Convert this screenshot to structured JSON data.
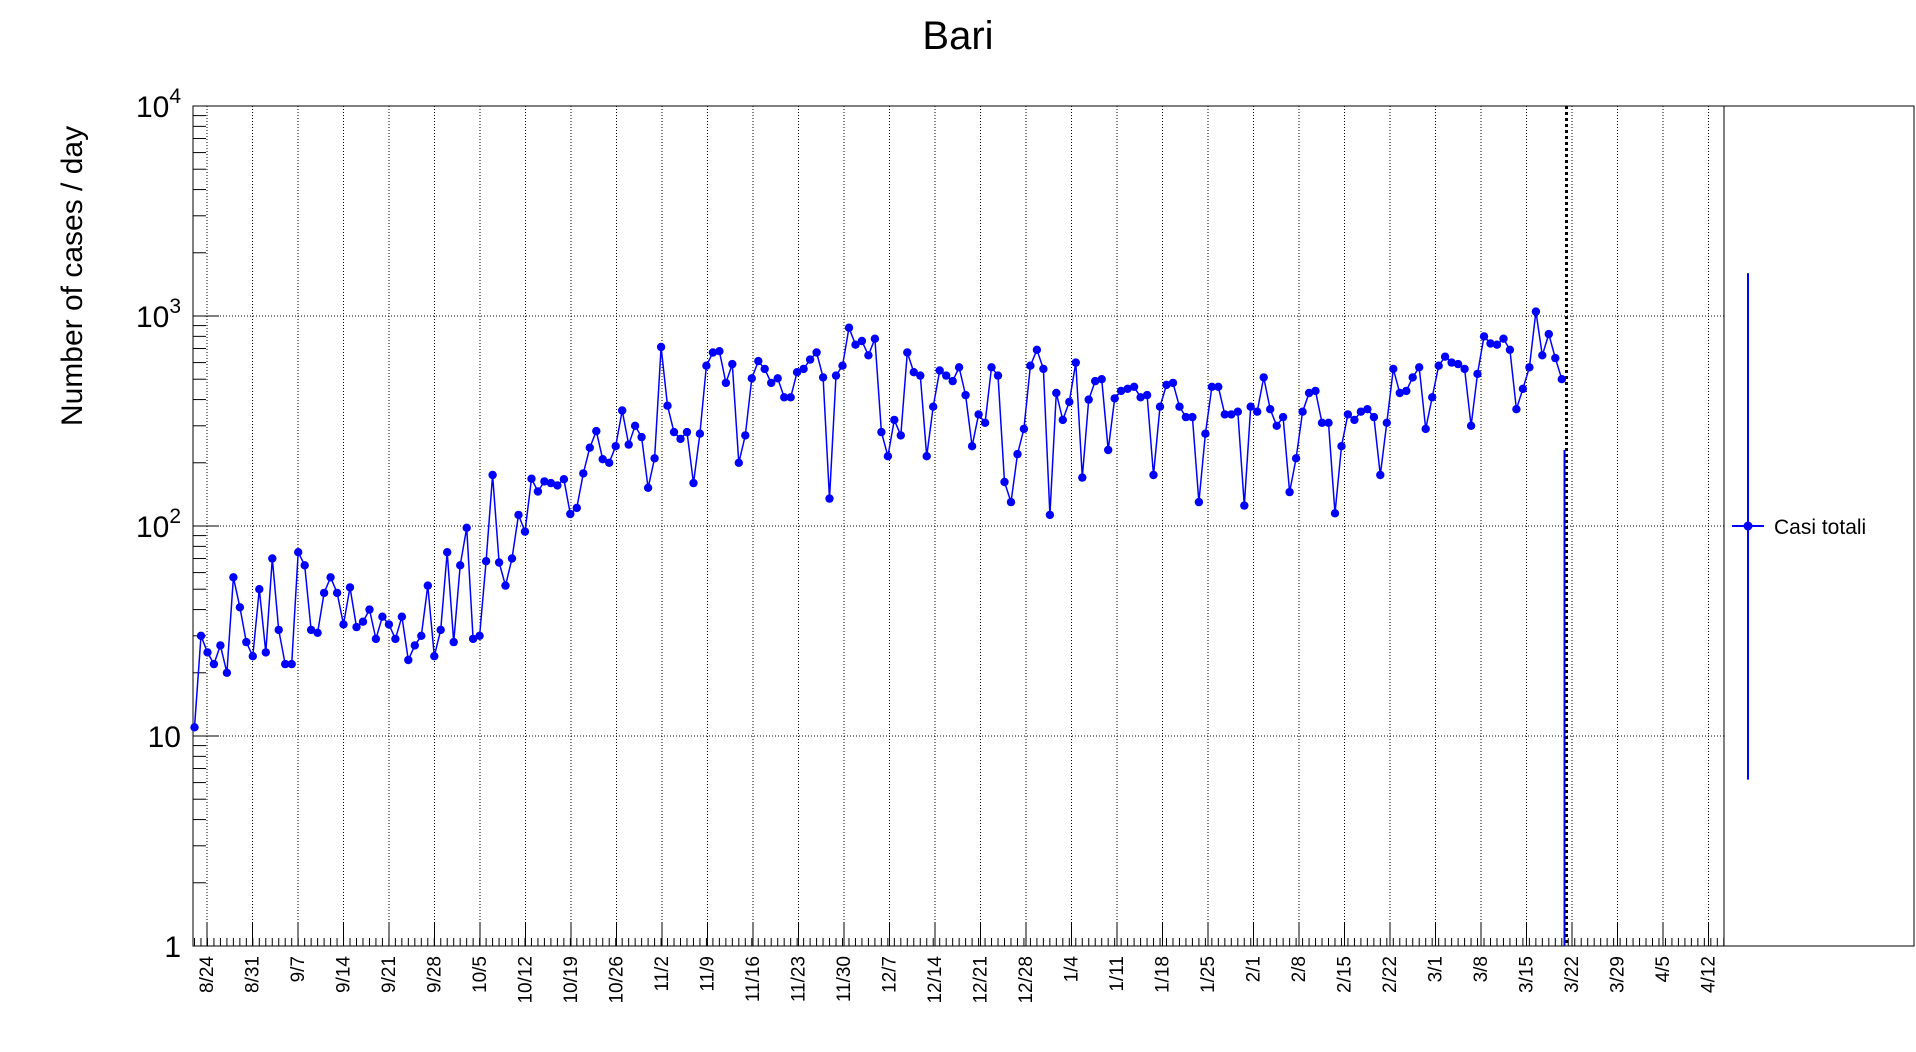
{
  "chart_data": {
    "type": "line",
    "title": "Bari",
    "xlabel": "",
    "ylabel": "Number of cases / day",
    "log_scale_y": true,
    "ylim": [
      1,
      10000
    ],
    "y_ticks": [
      {
        "value": 1,
        "base": "1",
        "exp": ""
      },
      {
        "value": 10,
        "base": "10",
        "exp": ""
      },
      {
        "value": 100,
        "base": "10",
        "exp": "2"
      },
      {
        "value": 1000,
        "base": "10",
        "exp": "3"
      },
      {
        "value": 10000,
        "base": "10",
        "exp": "4"
      }
    ],
    "x_tick_labels": [
      "8/24",
      "8/31",
      "9/7",
      "9/14",
      "9/21",
      "9/28",
      "10/5",
      "10/12",
      "10/19",
      "10/26",
      "11/2",
      "11/9",
      "11/16",
      "11/23",
      "11/30",
      "12/7",
      "12/14",
      "12/21",
      "12/28",
      "1/4",
      "1/11",
      "1/18",
      "1/25",
      "2/1",
      "2/8",
      "2/15",
      "2/22",
      "3/1",
      "3/8",
      "3/15",
      "3/22",
      "3/29",
      "4/5",
      "4/12"
    ],
    "grid": true,
    "legend_position": "right",
    "marker_line_date": "3/22",
    "series": [
      {
        "name": "Casi totali",
        "color": "#0000ff",
        "values": [
          11,
          30,
          25,
          22,
          27,
          20,
          57,
          41,
          28,
          24,
          50,
          25,
          70,
          32,
          22,
          22,
          75,
          65,
          32,
          31,
          48,
          57,
          48,
          34,
          51,
          33,
          35,
          40,
          29,
          37,
          34,
          29,
          37,
          23,
          27,
          30,
          52,
          24,
          32,
          75,
          28,
          65,
          98,
          29,
          30,
          68,
          175,
          67,
          52,
          70,
          113,
          94,
          168,
          146,
          163,
          160,
          156,
          167,
          114,
          122,
          178,
          236,
          283,
          208,
          200,
          240,
          355,
          244,
          300,
          265,
          152,
          210,
          712,
          374,
          280,
          260,
          280,
          160,
          275,
          580,
          670,
          680,
          480,
          590,
          200,
          270,
          505,
          610,
          560,
          480,
          505,
          410,
          410,
          540,
          560,
          620,
          670,
          510,
          135,
          520,
          580,
          880,
          730,
          760,
          650,
          780,
          280,
          215,
          320,
          270,
          670,
          540,
          520,
          215,
          370,
          550,
          520,
          490,
          570,
          420,
          240,
          340,
          310,
          570,
          520,
          162,
          130,
          220,
          290,
          580,
          690,
          560,
          113,
          430,
          320,
          390,
          600,
          170,
          400,
          490,
          500,
          230,
          405,
          440,
          450,
          460,
          410,
          420,
          175,
          370,
          470,
          480,
          370,
          330,
          330,
          130,
          275,
          460,
          460,
          340,
          340,
          350,
          125,
          370,
          350,
          510,
          360,
          300,
          330,
          145,
          210,
          350,
          430,
          440,
          310,
          310,
          115,
          240,
          340,
          320,
          350,
          360,
          330,
          175,
          310,
          560,
          430,
          440,
          510,
          570,
          290,
          410,
          580,
          640,
          600,
          590,
          560,
          300,
          530,
          800,
          740,
          730,
          780,
          690,
          360,
          450,
          570,
          1050,
          650,
          820,
          630,
          500
        ]
      }
    ]
  }
}
